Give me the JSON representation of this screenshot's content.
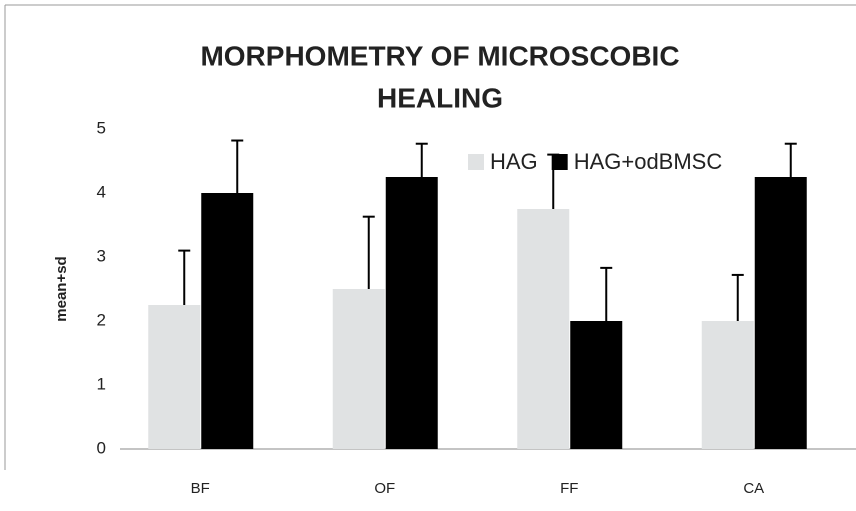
{
  "chart_data": {
    "type": "bar",
    "title": [
      "MORPHOMETRY OF MICROSCOBIC",
      "HEALING"
    ],
    "y_label": "mean+sd",
    "categories": [
      "BF",
      "OF",
      "FF",
      "CA"
    ],
    "series": [
      {
        "name": "HAG",
        "color": "#e0e2e3",
        "values": [
          2.25,
          2.5,
          3.75,
          2.0
        ],
        "errors": [
          0.85,
          1.13,
          0.85,
          0.72
        ]
      },
      {
        "name": "HAG+odBMSC",
        "color": "#000000",
        "values": [
          4.0,
          4.25,
          2.0,
          4.25
        ],
        "errors": [
          0.82,
          0.52,
          0.83,
          0.52
        ]
      }
    ],
    "ylim": [
      0,
      5
    ],
    "yticks": [
      0,
      1,
      2,
      3,
      4,
      5
    ],
    "grid": false,
    "legend": "top-right"
  }
}
